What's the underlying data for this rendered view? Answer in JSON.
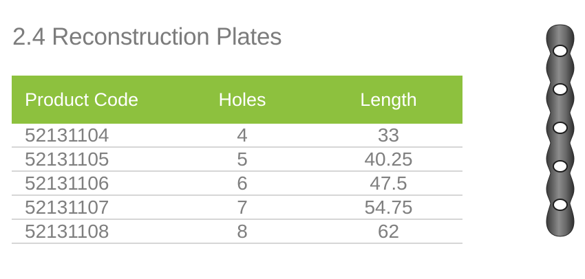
{
  "title": "2.4 Reconstruction Plates",
  "table": {
    "header": {
      "product_code": "Product Code",
      "holes": "Holes",
      "length": "Length"
    },
    "rows": [
      {
        "code": "52131104",
        "holes": "4",
        "length": "33"
      },
      {
        "code": "52131105",
        "holes": "5",
        "length": "40.25"
      },
      {
        "code": "52131106",
        "holes": "6",
        "length": "47.5"
      },
      {
        "code": "52131107",
        "holes": "7",
        "length": "54.75"
      },
      {
        "code": "52131108",
        "holes": "8",
        "length": "62"
      }
    ]
  },
  "colors": {
    "header_bg": "#8dc13e",
    "title_text": "#7c7c7c",
    "cell_text": "#7f7f7f",
    "row_divider": "#d6d6d6"
  },
  "image": {
    "plate_icon": "reconstruction-plate-icon"
  }
}
